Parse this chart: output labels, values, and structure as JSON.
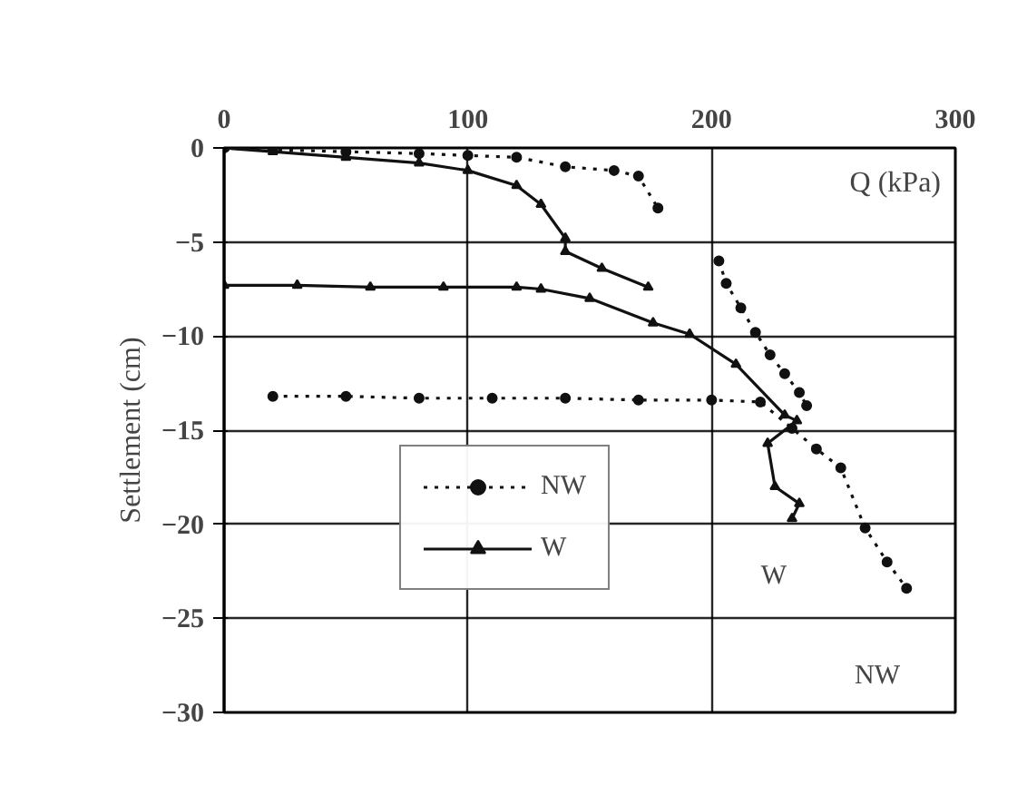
{
  "chart_data": {
    "type": "line",
    "xlabel": "Q (kPa)",
    "ylabel": "Settlement (cm)",
    "xlim": [
      0,
      300
    ],
    "xticks": [
      0,
      100,
      200,
      300
    ],
    "ylim": [
      -30,
      0
    ],
    "yticks": [
      0,
      -5,
      -10,
      -15,
      -20,
      -25,
      -30
    ],
    "grid": true,
    "legend": "bottom left",
    "series": [
      {
        "name": "NW",
        "color": "#111111",
        "marker": "circle",
        "line_style": "dotted",
        "x": [
          0,
          20,
          50,
          80,
          100,
          120,
          140,
          160,
          170,
          178,
          null,
          203,
          206,
          212,
          218,
          224,
          230,
          236,
          239,
          null,
          20,
          50,
          80,
          110,
          140,
          170,
          200,
          220,
          233,
          243,
          253,
          263,
          272,
          280
        ],
        "values": [
          0,
          -0.1,
          -0.2,
          -0.3,
          -0.4,
          -0.5,
          -1.0,
          -1.2,
          -1.5,
          -3.2,
          null,
          -6.0,
          -7.2,
          -8.5,
          -9.8,
          -11,
          -12,
          -13,
          -13.7,
          null,
          -13.2,
          -13.2,
          -13.3,
          -13.3,
          -13.3,
          -13.4,
          -13.4,
          -13.5,
          -14.9,
          -16,
          -17,
          -20.2,
          -22,
          -23.4
        ]
      },
      {
        "name": "W",
        "color": "#111111",
        "marker": "triangle",
        "line_style": "solid",
        "x": [
          0,
          20,
          50,
          80,
          100,
          120,
          130,
          140,
          140,
          155,
          174,
          null,
          0,
          30,
          60,
          90,
          120,
          130,
          150,
          176,
          191,
          210,
          230,
          235,
          223,
          226,
          236,
          233
        ],
        "values": [
          0,
          -0.2,
          -0.5,
          -0.8,
          -1.2,
          -2,
          -3,
          -4.8,
          -5.5,
          -6.4,
          -7.4,
          null,
          -7.3,
          -7.3,
          -7.4,
          -7.4,
          -7.4,
          -7.5,
          -8.0,
          -9.3,
          -9.9,
          -11.5,
          -14.2,
          -14.5,
          -15.7,
          -18,
          -18.9,
          -19.7
        ]
      }
    ],
    "annotations": [
      "W",
      "NW"
    ]
  }
}
